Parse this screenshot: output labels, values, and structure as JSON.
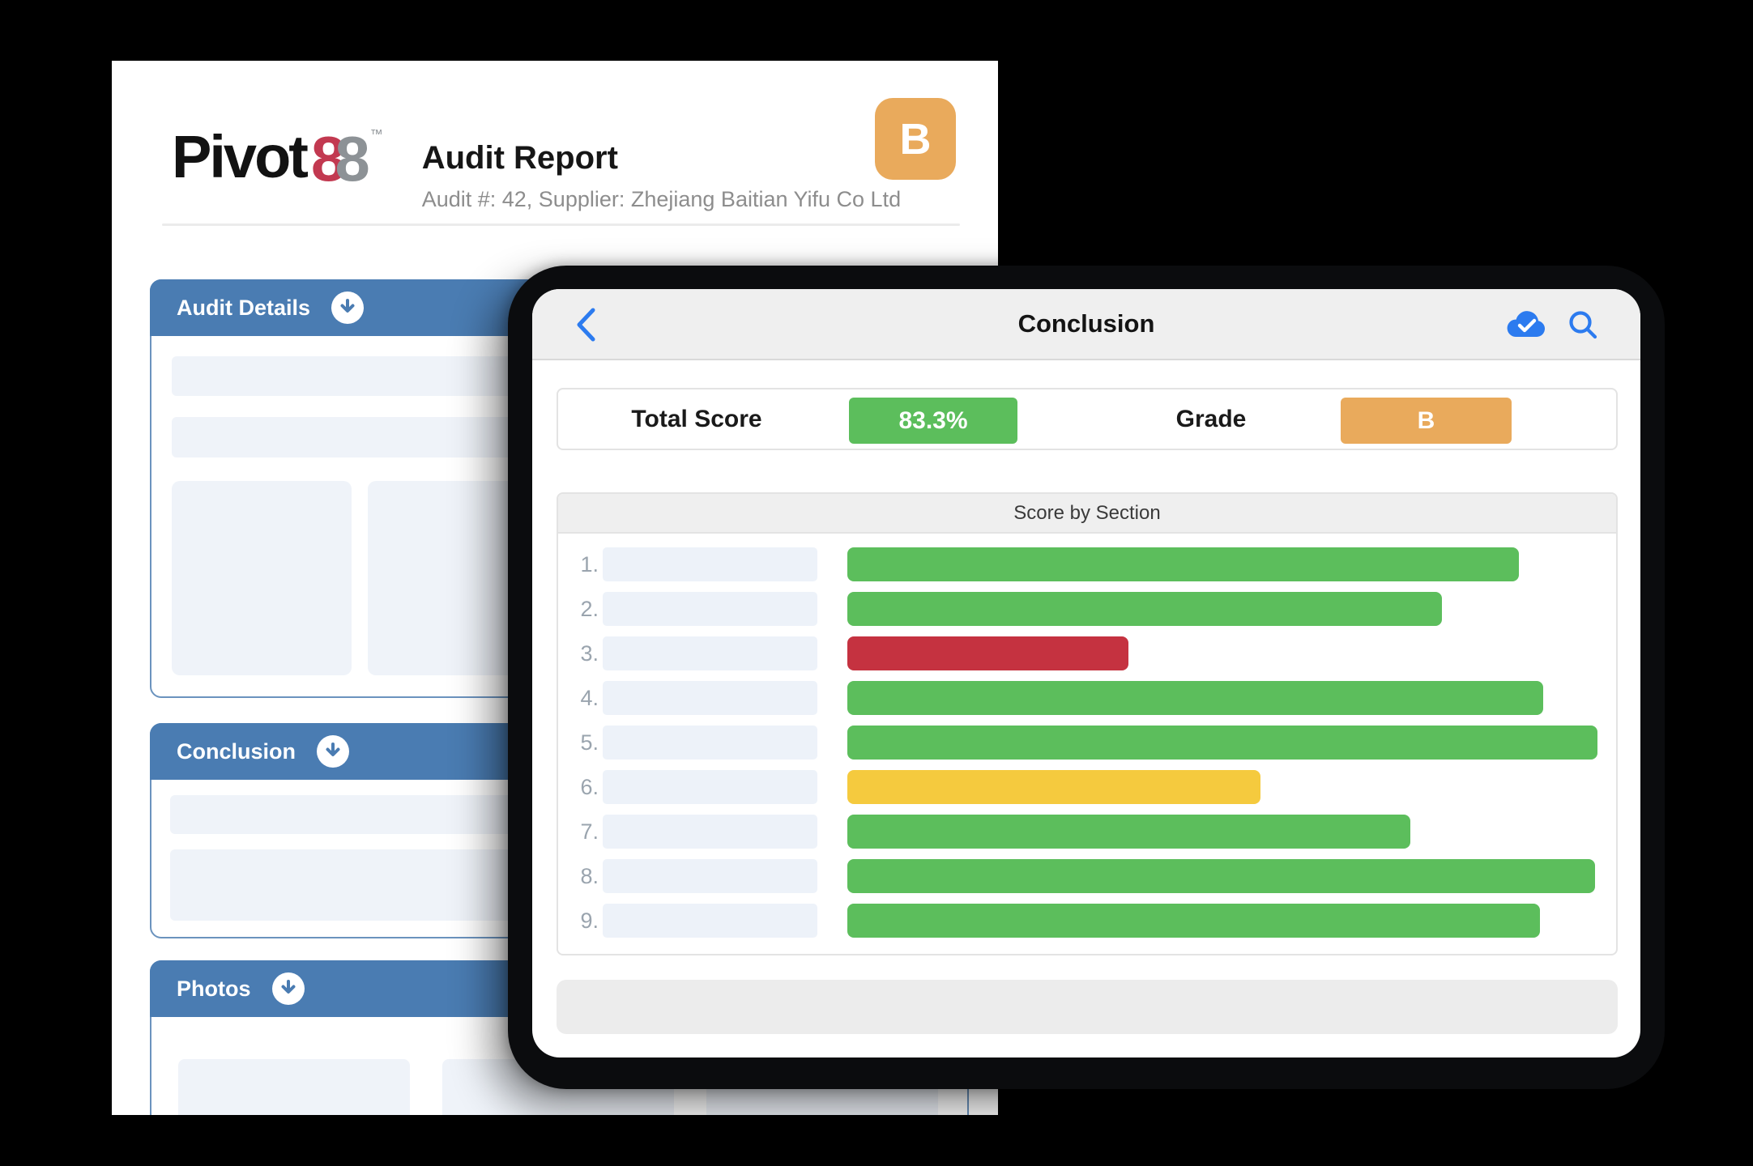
{
  "document": {
    "logo": {
      "word": "Pivot",
      "eight1": "8",
      "eight2": "8",
      "tm": "™"
    },
    "title": "Audit Report",
    "subtitle": "Audit #: 42, Supplier: Zhejiang Baitian Yifu Co Ltd",
    "grade_badge": "B",
    "sections": [
      {
        "label": "Audit Details"
      },
      {
        "label": "Conclusion"
      },
      {
        "label": "Photos"
      }
    ]
  },
  "tablet": {
    "nav": {
      "title": "Conclusion"
    },
    "summary": {
      "total_score_label": "Total Score",
      "total_score_value": "83.3%",
      "grade_label": "Grade",
      "grade_value": "B"
    },
    "score_by_section": {
      "title": "Score by Section",
      "rows": [
        {
          "num": "1.",
          "width_pct": 89.5,
          "color": "green"
        },
        {
          "num": "2.",
          "width_pct": 79.3,
          "color": "green"
        },
        {
          "num": "3.",
          "width_pct": 37.5,
          "color": "red"
        },
        {
          "num": "4.",
          "width_pct": 92.8,
          "color": "green"
        },
        {
          "num": "5.",
          "width_pct": 100,
          "color": "green"
        },
        {
          "num": "6.",
          "width_pct": 55.1,
          "color": "yellow"
        },
        {
          "num": "7.",
          "width_pct": 75.0,
          "color": "green"
        },
        {
          "num": "8.",
          "width_pct": 99.7,
          "color": "green"
        },
        {
          "num": "9.",
          "width_pct": 92.3,
          "color": "green"
        }
      ]
    }
  },
  "colors": {
    "section_header_blue": "#4a7cb2",
    "bar_green": "#5cbe5c",
    "bar_yellow": "#f5ca3e",
    "bar_red": "#c53240",
    "grade_orange": "#e9aa5c",
    "score_green": "#5cbe5c",
    "accent_blue": "#2c7bef"
  }
}
